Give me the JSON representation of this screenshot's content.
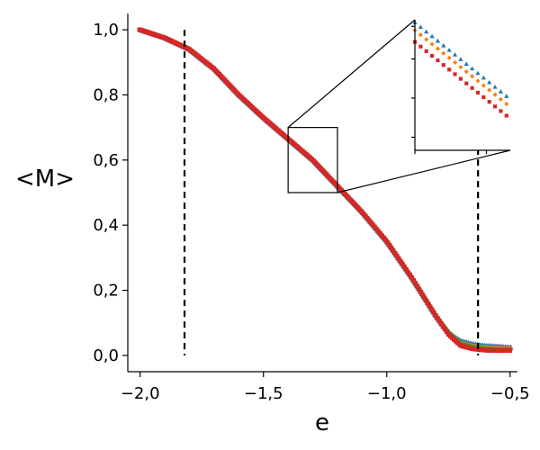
{
  "chart_data": {
    "type": "scatter",
    "xlabel": "e",
    "ylabel": "<M>",
    "xlim": [
      -2.05,
      -0.47
    ],
    "ylim": [
      -0.05,
      1.05
    ],
    "x_ticks": [
      -2.0,
      -1.5,
      -1.0,
      -0.5
    ],
    "x_tick_labels": [
      "−2,0",
      "−1,5",
      "−1,0",
      "−0,5"
    ],
    "y_ticks": [
      0.0,
      0.2,
      0.4,
      0.6,
      0.8,
      1.0
    ],
    "y_tick_labels": [
      "0,0",
      "0,2",
      "0,4",
      "0,6",
      "0,8",
      "1,0"
    ],
    "grid": false,
    "vertical_lines": [
      -1.82,
      -0.63
    ],
    "series": [
      {
        "color": "#1f77b4",
        "marker": "triangle",
        "shift": 0.012,
        "points": [
          [
            -2.0,
            1.0
          ],
          [
            -1.9,
            0.975
          ],
          [
            -1.8,
            0.94
          ],
          [
            -1.7,
            0.88
          ],
          [
            -1.6,
            0.8
          ],
          [
            -1.5,
            0.73
          ],
          [
            -1.4,
            0.665
          ],
          [
            -1.3,
            0.6
          ],
          [
            -1.2,
            0.52
          ],
          [
            -1.1,
            0.44
          ],
          [
            -1.0,
            0.35
          ],
          [
            -0.9,
            0.24
          ],
          [
            -0.8,
            0.12
          ],
          [
            -0.75,
            0.07
          ],
          [
            -0.7,
            0.045
          ],
          [
            -0.65,
            0.035
          ],
          [
            -0.6,
            0.03
          ],
          [
            -0.55,
            0.028
          ],
          [
            -0.5,
            0.025
          ]
        ]
      },
      {
        "color": "#ff7f0e",
        "marker": "diamond",
        "shift": 0.004,
        "points": [
          [
            -2.0,
            1.0
          ],
          [
            -1.9,
            0.975
          ],
          [
            -1.8,
            0.94
          ],
          [
            -1.7,
            0.88
          ],
          [
            -1.6,
            0.8
          ],
          [
            -1.5,
            0.73
          ],
          [
            -1.4,
            0.665
          ],
          [
            -1.3,
            0.6
          ],
          [
            -1.2,
            0.52
          ],
          [
            -1.1,
            0.44
          ],
          [
            -1.0,
            0.35
          ],
          [
            -0.9,
            0.24
          ],
          [
            -0.8,
            0.12
          ],
          [
            -0.75,
            0.07
          ],
          [
            -0.7,
            0.038
          ],
          [
            -0.65,
            0.028
          ],
          [
            -0.6,
            0.024
          ],
          [
            -0.55,
            0.022
          ],
          [
            -0.5,
            0.02
          ]
        ]
      },
      {
        "color": "#2ca02c",
        "marker": "circle",
        "shift": -0.003,
        "points": [
          [
            -2.0,
            1.0
          ],
          [
            -1.9,
            0.975
          ],
          [
            -1.8,
            0.94
          ],
          [
            -1.7,
            0.88
          ],
          [
            -1.6,
            0.8
          ],
          [
            -1.5,
            0.73
          ],
          [
            -1.4,
            0.665
          ],
          [
            -1.3,
            0.6
          ],
          [
            -1.2,
            0.52
          ],
          [
            -1.1,
            0.44
          ],
          [
            -1.0,
            0.35
          ],
          [
            -0.9,
            0.24
          ],
          [
            -0.8,
            0.12
          ],
          [
            -0.75,
            0.07
          ],
          [
            -0.7,
            0.035
          ],
          [
            -0.65,
            0.025
          ],
          [
            -0.6,
            0.02
          ],
          [
            -0.55,
            0.018
          ],
          [
            -0.5,
            0.017
          ]
        ]
      },
      {
        "color": "#d62728",
        "marker": "square",
        "shift": -0.01,
        "points": [
          [
            -2.0,
            1.0
          ],
          [
            -1.9,
            0.975
          ],
          [
            -1.8,
            0.94
          ],
          [
            -1.7,
            0.88
          ],
          [
            -1.6,
            0.8
          ],
          [
            -1.5,
            0.73
          ],
          [
            -1.4,
            0.665
          ],
          [
            -1.3,
            0.6
          ],
          [
            -1.2,
            0.52
          ],
          [
            -1.1,
            0.44
          ],
          [
            -1.0,
            0.35
          ],
          [
            -0.9,
            0.24
          ],
          [
            -0.8,
            0.12
          ],
          [
            -0.75,
            0.065
          ],
          [
            -0.7,
            0.03
          ],
          [
            -0.65,
            0.02
          ],
          [
            -0.6,
            0.016
          ],
          [
            -0.55,
            0.015
          ],
          [
            -0.5,
            0.015
          ]
        ]
      }
    ],
    "zoom_region": {
      "xlim": [
        -1.4,
        -1.2
      ],
      "ylim": [
        0.5,
        0.7
      ]
    },
    "inset": {
      "xlim": [
        -1.4,
        -1.2
      ],
      "ylim": [
        0.5,
        0.7
      ],
      "tick_labels": false
    }
  }
}
